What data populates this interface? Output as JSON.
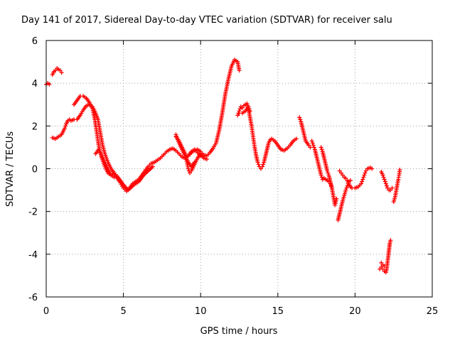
{
  "chart_data": {
    "type": "scatter",
    "title": "Day 141 of 2017, Sidereal Day-to-day VTEC variation (SDTVAR) for receiver salu",
    "xlabel": "GPS time / hours",
    "ylabel": "SDTVAR / TECUs",
    "xlim": [
      0,
      25
    ],
    "ylim": [
      -6,
      6
    ],
    "xticks": [
      0,
      5,
      10,
      15,
      20,
      25
    ],
    "yticks": [
      -6,
      -4,
      -2,
      0,
      2,
      4,
      6
    ],
    "grid": true,
    "marker": "plus",
    "color": "#ff0000",
    "series": [
      {
        "segments": [
          [
            [
              0.0,
              3.95
            ],
            [
              0.1,
              4.0
            ],
            [
              0.2,
              3.95
            ]
          ],
          [
            [
              0.4,
              4.4
            ],
            [
              0.5,
              4.55
            ],
            [
              0.6,
              4.6
            ],
            [
              0.7,
              4.7
            ],
            [
              0.8,
              4.65
            ],
            [
              0.9,
              4.6
            ],
            [
              1.0,
              4.5
            ]
          ],
          [
            [
              0.4,
              1.45
            ],
            [
              0.6,
              1.4
            ],
            [
              0.8,
              1.5
            ],
            [
              1.0,
              1.6
            ],
            [
              1.2,
              1.9
            ],
            [
              1.3,
              2.1
            ],
            [
              1.4,
              2.25
            ],
            [
              1.5,
              2.3
            ],
            [
              1.6,
              2.25
            ],
            [
              1.8,
              2.3
            ],
            [
              2.0,
              2.3
            ],
            [
              2.2,
              2.5
            ],
            [
              2.4,
              2.75
            ],
            [
              2.6,
              2.95
            ],
            [
              2.8,
              3.0
            ],
            [
              3.0,
              2.9
            ],
            [
              3.2,
              2.6
            ],
            [
              3.35,
              2.3
            ],
            [
              3.45,
              1.9
            ],
            [
              3.55,
              1.5
            ],
            [
              3.65,
              1.1
            ],
            [
              3.8,
              0.7
            ],
            [
              4.0,
              0.3
            ],
            [
              4.2,
              0.0
            ],
            [
              4.4,
              -0.2
            ],
            [
              4.6,
              -0.45
            ],
            [
              4.8,
              -0.65
            ],
            [
              5.0,
              -0.9
            ],
            [
              5.2,
              -1.05
            ],
            [
              5.4,
              -0.9
            ],
            [
              5.6,
              -0.7
            ],
            [
              5.8,
              -0.6
            ],
            [
              6.0,
              -0.5
            ],
            [
              6.2,
              -0.3
            ],
            [
              6.4,
              -0.1
            ],
            [
              6.6,
              0.1
            ],
            [
              6.8,
              0.25
            ],
            [
              7.0,
              0.3
            ],
            [
              7.2,
              0.4
            ],
            [
              7.4,
              0.5
            ],
            [
              7.6,
              0.65
            ],
            [
              7.8,
              0.8
            ],
            [
              8.0,
              0.9
            ],
            [
              8.2,
              0.95
            ],
            [
              8.4,
              0.85
            ],
            [
              8.6,
              0.7
            ],
            [
              8.8,
              0.55
            ],
            [
              9.0,
              0.5
            ],
            [
              9.2,
              0.6
            ],
            [
              9.4,
              0.75
            ],
            [
              9.6,
              0.85
            ],
            [
              9.8,
              0.9
            ],
            [
              10.0,
              0.8
            ],
            [
              10.2,
              0.65
            ],
            [
              10.4,
              0.6
            ],
            [
              10.6,
              0.75
            ],
            [
              10.8,
              0.95
            ],
            [
              11.0,
              1.2
            ],
            [
              11.2,
              1.8
            ],
            [
              11.4,
              2.6
            ],
            [
              11.6,
              3.5
            ],
            [
              11.8,
              4.2
            ],
            [
              12.0,
              4.8
            ],
            [
              12.2,
              5.1
            ],
            [
              12.4,
              5.0
            ],
            [
              12.5,
              4.6
            ]
          ],
          [
            [
              1.8,
              3.0
            ],
            [
              2.0,
              3.2
            ],
            [
              2.2,
              3.4
            ],
            [
              2.4,
              3.4
            ],
            [
              2.6,
              3.3
            ],
            [
              2.8,
              3.1
            ],
            [
              3.0,
              2.8
            ],
            [
              3.15,
              2.3
            ],
            [
              3.25,
              1.8
            ],
            [
              3.35,
              1.3
            ],
            [
              3.45,
              0.9
            ],
            [
              3.6,
              0.5
            ],
            [
              3.8,
              0.1
            ],
            [
              4.0,
              -0.2
            ],
            [
              4.2,
              -0.3
            ],
            [
              4.4,
              -0.2
            ],
            [
              4.6,
              -0.35
            ],
            [
              4.8,
              -0.55
            ],
            [
              5.0,
              -0.75
            ],
            [
              5.3,
              -1.0
            ],
            [
              5.6,
              -0.8
            ],
            [
              6.0,
              -0.6
            ],
            [
              6.3,
              -0.3
            ],
            [
              6.6,
              -0.1
            ],
            [
              6.9,
              0.1
            ]
          ],
          [
            [
              3.2,
              0.7
            ],
            [
              3.4,
              0.9
            ],
            [
              3.6,
              0.6
            ],
            [
              3.8,
              0.3
            ],
            [
              4.0,
              0.0
            ],
            [
              4.2,
              -0.3
            ],
            [
              4.4,
              -0.4
            ]
          ],
          [
            [
              8.4,
              1.5
            ],
            [
              8.6,
              1.3
            ],
            [
              8.8,
              1.0
            ],
            [
              9.0,
              0.7
            ],
            [
              9.1,
              0.35
            ],
            [
              9.2,
              0.0
            ],
            [
              9.3,
              -0.2
            ],
            [
              9.4,
              -0.1
            ],
            [
              9.6,
              0.2
            ],
            [
              9.8,
              0.5
            ],
            [
              10.0,
              0.7
            ],
            [
              10.2,
              0.5
            ],
            [
              10.4,
              0.45
            ]
          ],
          [
            [
              8.4,
              1.6
            ],
            [
              8.6,
              1.2
            ],
            [
              8.8,
              0.9
            ],
            [
              9.0,
              0.6
            ],
            [
              9.2,
              0.3
            ],
            [
              9.4,
              0.1
            ],
            [
              9.6,
              0.3
            ]
          ],
          [
            [
              9.2,
              0.6
            ],
            [
              9.4,
              0.8
            ],
            [
              9.6,
              0.9
            ],
            [
              9.8,
              0.75
            ],
            [
              10.0,
              0.6
            ]
          ],
          [
            [
              12.4,
              2.5
            ],
            [
              12.5,
              2.7
            ],
            [
              12.6,
              2.9
            ],
            [
              12.7,
              2.85
            ],
            [
              12.8,
              2.95
            ],
            [
              12.9,
              3.0
            ],
            [
              13.0,
              3.05
            ],
            [
              13.1,
              2.8
            ],
            [
              13.2,
              2.4
            ],
            [
              13.3,
              2.0
            ],
            [
              13.4,
              1.5
            ],
            [
              13.5,
              1.0
            ],
            [
              13.6,
              0.6
            ],
            [
              13.7,
              0.3
            ],
            [
              13.8,
              0.1
            ],
            [
              13.9,
              0.0
            ],
            [
              14.0,
              0.1
            ],
            [
              14.1,
              0.3
            ],
            [
              14.2,
              0.6
            ],
            [
              14.3,
              0.9
            ],
            [
              14.4,
              1.2
            ],
            [
              14.5,
              1.35
            ],
            [
              14.6,
              1.4
            ],
            [
              14.8,
              1.3
            ],
            [
              15.0,
              1.1
            ],
            [
              15.2,
              0.9
            ],
            [
              15.4,
              0.85
            ],
            [
              15.6,
              0.95
            ],
            [
              15.8,
              1.1
            ],
            [
              16.0,
              1.3
            ],
            [
              16.2,
              1.4
            ]
          ],
          [
            [
              12.5,
              2.6
            ],
            [
              12.7,
              2.6
            ],
            [
              12.9,
              2.7
            ],
            [
              13.1,
              2.9
            ],
            [
              13.2,
              2.7
            ]
          ],
          [
            [
              16.4,
              2.4
            ],
            [
              16.5,
              2.2
            ],
            [
              16.6,
              1.9
            ],
            [
              16.7,
              1.6
            ],
            [
              16.8,
              1.3
            ],
            [
              17.0,
              1.1
            ],
            [
              17.1,
              1.0
            ]
          ],
          [
            [
              17.2,
              1.3
            ],
            [
              17.3,
              1.1
            ],
            [
              17.4,
              0.9
            ],
            [
              17.5,
              0.6
            ],
            [
              17.6,
              0.3
            ],
            [
              17.7,
              0.0
            ],
            [
              17.8,
              -0.3
            ],
            [
              17.9,
              -0.5
            ],
            [
              18.0,
              -0.45
            ],
            [
              18.1,
              -0.5
            ],
            [
              18.2,
              -0.55
            ],
            [
              18.3,
              -0.6
            ],
            [
              18.4,
              -0.7
            ],
            [
              18.5,
              -0.9
            ]
          ],
          [
            [
              17.8,
              1.0
            ],
            [
              17.9,
              0.8
            ],
            [
              18.0,
              0.5
            ],
            [
              18.1,
              0.2
            ],
            [
              18.2,
              -0.1
            ],
            [
              18.3,
              -0.3
            ],
            [
              18.4,
              -0.6
            ],
            [
              18.5,
              -0.9
            ],
            [
              18.6,
              -1.3
            ],
            [
              18.7,
              -1.7
            ],
            [
              18.8,
              -1.4
            ]
          ],
          [
            [
              18.9,
              -2.4
            ],
            [
              19.0,
              -2.1
            ],
            [
              19.1,
              -1.8
            ],
            [
              19.2,
              -1.5
            ],
            [
              19.3,
              -1.25
            ],
            [
              19.4,
              -1.0
            ],
            [
              19.5,
              -0.8
            ],
            [
              19.6,
              -0.6
            ],
            [
              19.7,
              -0.55
            ]
          ],
          [
            [
              19.0,
              -0.1
            ],
            [
              19.1,
              -0.2
            ],
            [
              19.2,
              -0.3
            ],
            [
              19.3,
              -0.4
            ],
            [
              19.4,
              -0.45
            ],
            [
              19.5,
              -0.55
            ],
            [
              19.6,
              -0.7
            ],
            [
              19.7,
              -0.85
            ],
            [
              19.8,
              -0.9
            ],
            [
              20.0,
              -0.9
            ],
            [
              20.2,
              -0.85
            ],
            [
              20.4,
              -0.7
            ],
            [
              20.5,
              -0.5
            ],
            [
              20.6,
              -0.3
            ],
            [
              20.7,
              -0.1
            ],
            [
              20.8,
              0.0
            ],
            [
              21.0,
              0.05
            ],
            [
              21.1,
              0.0
            ]
          ],
          [
            [
              21.7,
              -0.15
            ],
            [
              21.8,
              -0.3
            ],
            [
              21.9,
              -0.5
            ],
            [
              22.0,
              -0.7
            ],
            [
              22.1,
              -0.9
            ],
            [
              22.2,
              -1.0
            ],
            [
              22.3,
              -1.0
            ],
            [
              22.4,
              -0.9
            ]
          ],
          [
            [
              22.5,
              -1.55
            ],
            [
              22.6,
              -1.3
            ],
            [
              22.7,
              -0.9
            ],
            [
              22.8,
              -0.5
            ],
            [
              22.85,
              -0.3
            ],
            [
              22.9,
              -0.05
            ]
          ],
          [
            [
              21.6,
              -4.7
            ],
            [
              21.7,
              -4.6
            ],
            [
              21.8,
              -4.7
            ],
            [
              21.9,
              -4.8
            ],
            [
              22.0,
              -4.85
            ],
            [
              22.05,
              -4.7
            ],
            [
              22.1,
              -4.4
            ],
            [
              22.15,
              -4.1
            ],
            [
              22.2,
              -3.8
            ],
            [
              22.25,
              -3.5
            ],
            [
              22.3,
              -3.35
            ]
          ],
          [
            [
              21.7,
              -4.4
            ],
            [
              21.8,
              -4.5
            ],
            [
              21.9,
              -4.55
            ]
          ]
        ]
      }
    ]
  }
}
